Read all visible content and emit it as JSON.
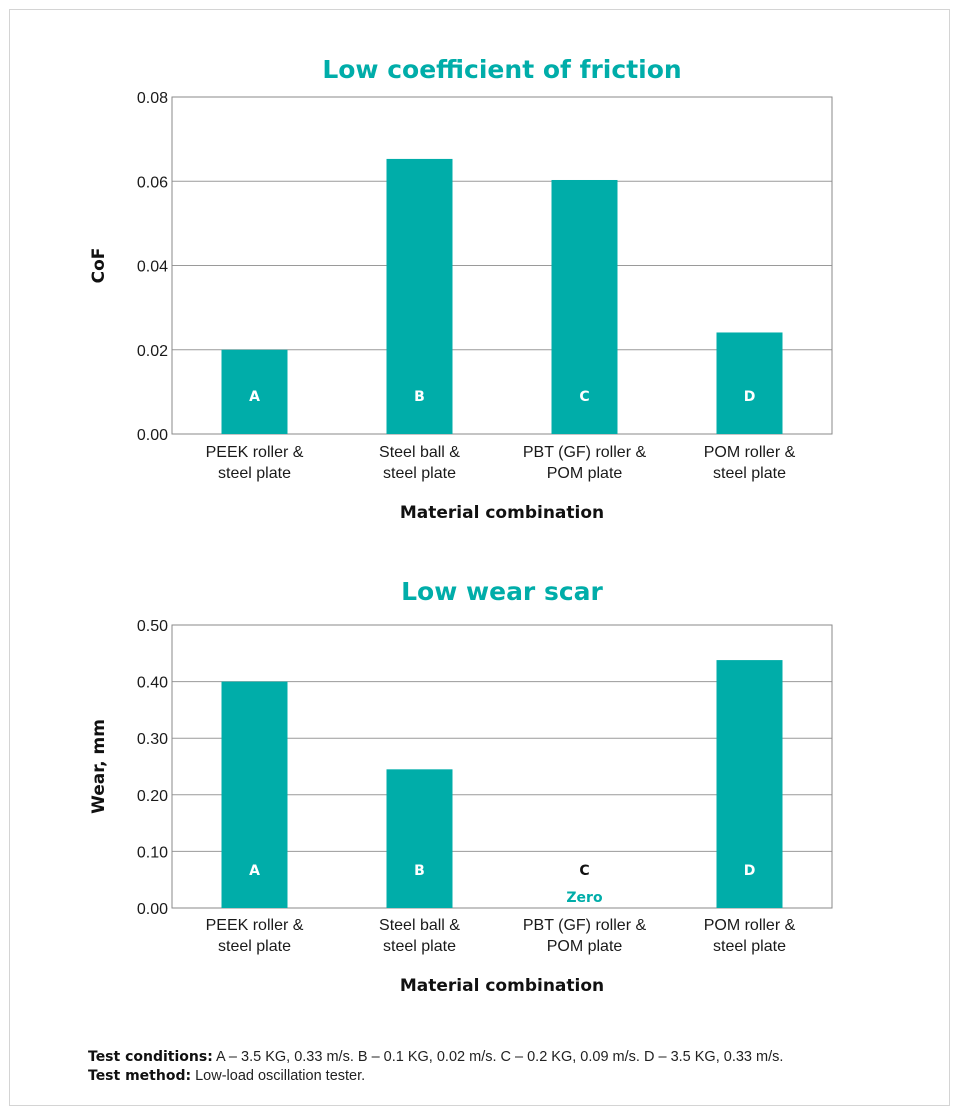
{
  "chart_data": [
    {
      "type": "bar",
      "title": "Low coefficient of friction",
      "xlabel": "Material combination",
      "ylabel": "CoF",
      "ylim": [
        0,
        0.08
      ],
      "yticks": [
        "0.00",
        "0.02",
        "0.04",
        "0.06",
        "0.08"
      ],
      "categories": [
        [
          "PEEK roller &",
          "steel plate"
        ],
        [
          "Steel ball &",
          "steel plate"
        ],
        [
          "PBT (GF) roller &",
          "POM plate"
        ],
        [
          "POM roller &",
          "steel plate"
        ]
      ],
      "values": [
        0.02,
        0.0653,
        0.0603,
        0.0241
      ],
      "bar_labels": [
        "A",
        "B",
        "C",
        "D"
      ],
      "notes": [
        "",
        "",
        "",
        ""
      ],
      "grid": true,
      "bar_color": "#00ada9"
    },
    {
      "type": "bar",
      "title": "Low wear scar",
      "xlabel": "Material combination",
      "ylabel": "Wear, mm",
      "ylim": [
        0,
        0.5
      ],
      "yticks": [
        "0.00",
        "0.10",
        "0.20",
        "0.30",
        "0.40",
        "0.50"
      ],
      "categories": [
        [
          "PEEK roller &",
          "steel plate"
        ],
        [
          "Steel ball &",
          "steel plate"
        ],
        [
          "PBT (GF) roller &",
          "POM plate"
        ],
        [
          "POM roller &",
          "steel plate"
        ]
      ],
      "values": [
        0.4,
        0.245,
        0,
        0.438
      ],
      "bar_labels": [
        "A",
        "B",
        "C",
        "D"
      ],
      "notes": [
        "",
        "",
        "Zero",
        ""
      ],
      "grid": true,
      "bar_color": "#00ada9"
    }
  ],
  "footnote": {
    "conditions_label": "Test conditions:",
    "conditions_text": " A – 3.5 KG, 0.33 m/s. B – 0.1 KG, 0.02 m/s. C – 0.2 KG, 0.09 m/s. D – 3.5 KG, 0.33 m/s.",
    "method_label": "Test method:",
    "method_text": " Low-load oscillation tester."
  }
}
